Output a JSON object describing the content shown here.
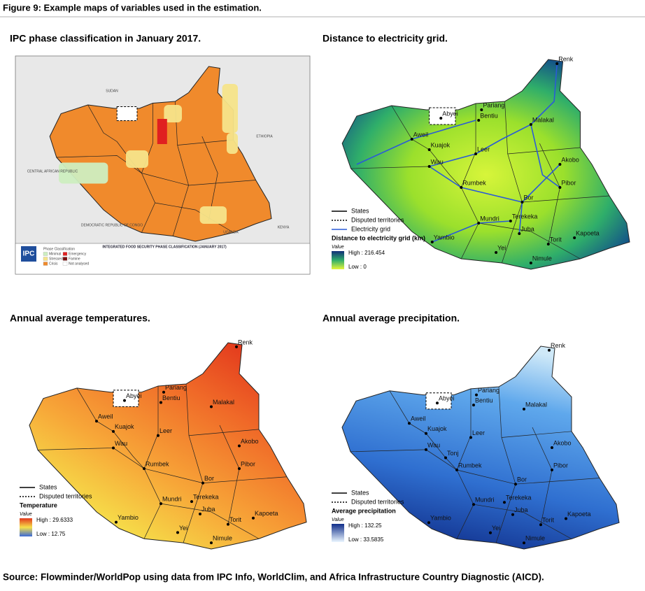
{
  "figure_title": "Figure 9: Example maps of variables used in the estimation.",
  "panels": [
    {
      "title": "IPC phase classification in January 2017.",
      "countries": [
        "SUDAN",
        "ETHIOPIA",
        "CENTRAL AFRICAN REPUBLIC",
        "DEMOCRATIC REPUBLIC OF CONGO",
        "UGANDA",
        "KENYA"
      ],
      "logo": "IPC",
      "map_title": "INTEGRATED FOOD SECURITY PHASE CLASSIFICATION (JANUARY 2017)",
      "legend_title": "Phase Classification",
      "phases": [
        {
          "name": "Minimal",
          "color": "#cdeec0"
        },
        {
          "name": "Stressed",
          "color": "#f5e48a"
        },
        {
          "name": "Crisis",
          "color": "#f08a2c"
        },
        {
          "name": "Emergency",
          "color": "#e02020"
        },
        {
          "name": "Famine",
          "color": "#7a0e0e"
        },
        {
          "name": "Not analysed",
          "color": "#ffffff"
        }
      ]
    },
    {
      "title": "Distance to electricity grid.",
      "cities": [
        "Renk",
        "Pariang",
        "Abyei",
        "Bentiu",
        "Malakal",
        "Aweil",
        "Kuajok",
        "Leer",
        "Wau",
        "Akobo",
        "Rumbek",
        "Pibor",
        "Bor",
        "Mundri",
        "Terekeka",
        "Juba",
        "Yambio",
        "Yei",
        "Torit",
        "Kapoeta",
        "Nimule"
      ],
      "legend": {
        "lines": [
          "States",
          "Disputed territories",
          "Electricity grid"
        ],
        "title": "Distance to electricity grid (km)",
        "value_label": "Value",
        "high": "High : 216.454",
        "low": "Low : 0"
      }
    },
    {
      "title": "Annual average temperatures.",
      "cities": [
        "Renk",
        "Pariang",
        "Abyei",
        "Bentiu",
        "Malakal",
        "Aweil",
        "Kuajok",
        "Leer",
        "Wau",
        "Akobo",
        "Rumbek",
        "Pibor",
        "Bor",
        "Mundri",
        "Terekeka",
        "Juba",
        "Yambio",
        "Yei",
        "Torit",
        "Kapoeta",
        "Nimule"
      ],
      "legend": {
        "lines": [
          "States",
          "Disputed territories"
        ],
        "title": "Temperature",
        "value_label": "Value",
        "high": "High : 29.6333",
        "low": "Low : 12.75"
      }
    },
    {
      "title": "Annual average precipitation.",
      "cities": [
        "Renk",
        "Pariang",
        "Abyei",
        "Bentiu",
        "Malakal",
        "Aweil",
        "Kuajok",
        "Leer",
        "Wau",
        "Akobo",
        "Rumbek",
        "Pibor",
        "Bor",
        "Mundri",
        "Terekeka",
        "Juba",
        "Yambio",
        "Yei",
        "Torit",
        "Kapoeta",
        "Nimule",
        "Tonj"
      ],
      "legend": {
        "lines": [
          "States",
          "Disputed territories"
        ],
        "title": "Average precipitation",
        "value_label": "Value",
        "high": "High : 132.25",
        "low": "Low : 33.5835"
      }
    }
  ],
  "source": "Source: Flowminder/WorldPop using data from IPC Info, WorldClim, and Africa Infrastructure Country Diagnostic (AICD)."
}
